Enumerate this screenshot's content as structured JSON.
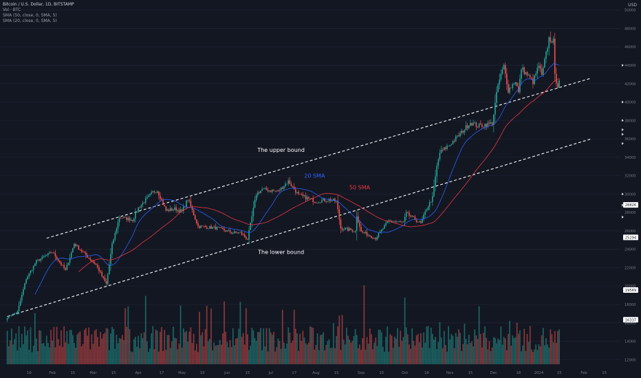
{
  "header": {
    "title": "Bitcoin / U.S. Dollar, 1D, BITSTAMP",
    "volume_label": "Vol · BTC",
    "sma50_label": "SMA (50, close, 0, SMA, 5)",
    "sma20_label": "SMA (20, close, 0, SMA, 5)",
    "currency": "USD"
  },
  "colors": {
    "background": "#131722",
    "up": "#26a69a",
    "down": "#ef5350",
    "sma20": "#2962ff",
    "sma50": "#f23645",
    "channel": "#ffffff",
    "axis_text": "#787b86"
  },
  "chart_data": {
    "type": "candlestick",
    "y_axis": {
      "ticks": [
        12000,
        14000,
        16000,
        18000,
        20000,
        22000,
        24000,
        26000,
        28000,
        30000,
        32000,
        34000,
        36000,
        38000,
        40000,
        42000,
        44000,
        46000,
        48000,
        50000
      ],
      "ylim": [
        11500,
        50500
      ]
    },
    "x_axis": {
      "labels": [
        "16",
        "Feb",
        "15",
        "Mar",
        "15",
        "Apr",
        "17",
        "May",
        "15",
        "Jun",
        "15",
        "Jul",
        "17",
        "Aug",
        "15",
        "Sep",
        "15",
        "Oct",
        "16",
        "Nov",
        "15",
        "Dec",
        "18",
        "2024",
        "15",
        "Feb",
        "15"
      ]
    },
    "price_badges": [
      {
        "value": "28826",
        "color": "#ffffff"
      },
      {
        "value": "25294",
        "color": "#ffffff"
      },
      {
        "value": "19569",
        "color": "#ffffff"
      },
      {
        "value": "16337",
        "color": "#ffffff"
      }
    ],
    "price_key_points": [
      [
        "2023-01-01",
        16600
      ],
      [
        "2023-01-08",
        17200
      ],
      [
        "2023-01-14",
        20800
      ],
      [
        "2023-01-21",
        22700
      ],
      [
        "2023-02-01",
        23700
      ],
      [
        "2023-02-10",
        21700
      ],
      [
        "2023-02-16",
        24600
      ],
      [
        "2023-02-25",
        23200
      ],
      [
        "2023-03-03",
        22300
      ],
      [
        "2023-03-10",
        20200
      ],
      [
        "2023-03-14",
        24500
      ],
      [
        "2023-03-19",
        27500
      ],
      [
        "2023-03-28",
        27200
      ],
      [
        "2023-04-01",
        28500
      ],
      [
        "2023-04-11",
        30200
      ],
      [
        "2023-04-14",
        30400
      ],
      [
        "2023-04-20",
        28200
      ],
      [
        "2023-04-26",
        28400
      ],
      [
        "2023-05-01",
        28100
      ],
      [
        "2023-05-05",
        29500
      ],
      [
        "2023-05-12",
        26500
      ],
      [
        "2023-05-25",
        26300
      ],
      [
        "2023-06-05",
        25800
      ],
      [
        "2023-06-10",
        25800
      ],
      [
        "2023-06-15",
        25100
      ],
      [
        "2023-06-21",
        30000
      ],
      [
        "2023-06-25",
        30500
      ],
      [
        "2023-07-06",
        30300
      ],
      [
        "2023-07-13",
        31400
      ],
      [
        "2023-07-20",
        29900
      ],
      [
        "2023-08-01",
        29200
      ],
      [
        "2023-08-10",
        29400
      ],
      [
        "2023-08-15",
        29200
      ],
      [
        "2023-08-18",
        26300
      ],
      [
        "2023-08-28",
        26000
      ],
      [
        "2023-08-29",
        27700
      ],
      [
        "2023-09-01",
        25900
      ],
      [
        "2023-09-11",
        25200
      ],
      [
        "2023-09-20",
        27100
      ],
      [
        "2023-09-30",
        26900
      ],
      [
        "2023-10-02",
        27900
      ],
      [
        "2023-10-12",
        26800
      ],
      [
        "2023-10-16",
        28400
      ],
      [
        "2023-10-20",
        29600
      ],
      [
        "2023-10-23",
        33000
      ],
      [
        "2023-10-25",
        34500
      ],
      [
        "2023-11-01",
        35400
      ],
      [
        "2023-11-09",
        36700
      ],
      [
        "2023-11-15",
        37800
      ],
      [
        "2023-11-20",
        37400
      ],
      [
        "2023-11-30",
        37700
      ],
      [
        "2023-12-04",
        41900
      ],
      [
        "2023-12-08",
        43900
      ],
      [
        "2023-12-11",
        41300
      ],
      [
        "2023-12-16",
        42300
      ],
      [
        "2023-12-18",
        41000
      ],
      [
        "2023-12-20",
        43700
      ],
      [
        "2023-12-28",
        42200
      ],
      [
        "2024-01-01",
        44000
      ],
      [
        "2024-01-03",
        42800
      ],
      [
        "2024-01-08",
        46900
      ],
      [
        "2024-01-11",
        46600
      ],
      [
        "2024-01-12",
        42800
      ],
      [
        "2024-01-14",
        41800
      ],
      [
        "2024-01-15",
        42500
      ]
    ],
    "channel_lines": [
      {
        "name": "upper",
        "start": [
          "2023-01-28",
          25200
        ],
        "end": [
          "2024-02-06",
          42600
        ]
      },
      {
        "name": "lower",
        "start": [
          "2023-01-01",
          16700
        ],
        "end": [
          "2024-02-06",
          36000
        ]
      }
    ],
    "annotations": [
      {
        "text": "The upper bound",
        "color": "#ffffff",
        "at": [
          "2023-07-08",
          34600
        ]
      },
      {
        "text": "The lower bound",
        "color": "#ffffff",
        "at": [
          "2023-07-08",
          23500
        ]
      },
      {
        "text": "20 SMA",
        "color": "#2962ff",
        "at": [
          "2023-07-31",
          31800
        ]
      },
      {
        "text": "50 SMA",
        "color": "#f23645",
        "at": [
          "2023-08-31",
          30500
        ]
      }
    ]
  }
}
